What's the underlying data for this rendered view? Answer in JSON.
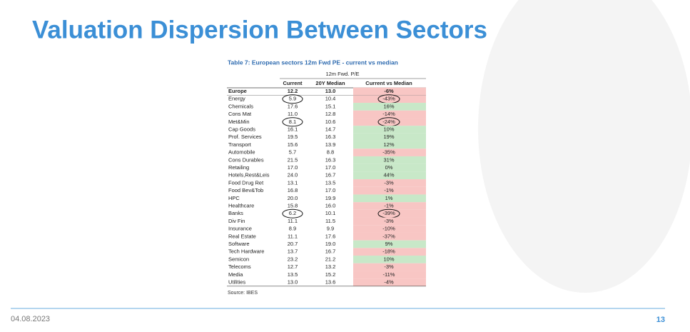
{
  "title": "Valuation Dispersion Between Sectors",
  "table": {
    "caption": "Table 7: European sectors 12m Fwd PE - current vs median",
    "group_header": "12m Fwd. P/E",
    "columns": [
      "Current",
      "20Y Median",
      "Current vs Median"
    ],
    "rows": [
      [
        "Europe",
        "12.2",
        "13.0",
        "-6%"
      ],
      [
        "Energy",
        "5.9",
        "10.4",
        "-43%"
      ],
      [
        "Chemicals",
        "17.6",
        "15.1",
        "16%"
      ],
      [
        "Cons Mat",
        "11.0",
        "12.8",
        "-14%"
      ],
      [
        "Met&Min",
        "8.1",
        "10.6",
        "-24%"
      ],
      [
        "Cap Goods",
        "16.1",
        "14.7",
        "10%"
      ],
      [
        "Prof. Services",
        "19.5",
        "16.3",
        "19%"
      ],
      [
        "Transport",
        "15.6",
        "13.9",
        "12%"
      ],
      [
        "Automobile",
        "5.7",
        "8.8",
        "-35%"
      ],
      [
        "Cons Durables",
        "21.5",
        "16.3",
        "31%"
      ],
      [
        "Retailing",
        "17.0",
        "17.0",
        "0%"
      ],
      [
        "Hotels,Rest&Leis",
        "24.0",
        "16.7",
        "44%"
      ],
      [
        "Food Drug Ret",
        "13.1",
        "13.5",
        "-3%"
      ],
      [
        "Food Bev&Tob",
        "16.8",
        "17.0",
        "-1%"
      ],
      [
        "HPC",
        "20.0",
        "19.9",
        "1%"
      ],
      [
        "Healthcare",
        "15.8",
        "16.0",
        "-1%"
      ],
      [
        "Banks",
        "6.2",
        "10.1",
        "-39%"
      ],
      [
        "Div Fin",
        "11.1",
        "11.5",
        "-3%"
      ],
      [
        "Insurance",
        "8.9",
        "9.9",
        "-10%"
      ],
      [
        "Real Estate",
        "11.1",
        "17.6",
        "-37%"
      ],
      [
        "Software",
        "20.7",
        "19.0",
        "9%"
      ],
      [
        "Tech Hardware",
        "13.7",
        "16.7",
        "-18%"
      ],
      [
        "Semicon",
        "23.2",
        "21.2",
        "10%"
      ],
      [
        "Telecoms",
        "12.7",
        "13.2",
        "-3%"
      ],
      [
        "Media",
        "13.5",
        "15.2",
        "-11%"
      ],
      [
        "Utilities",
        "13.0",
        "13.6",
        "-4%"
      ]
    ],
    "source": "Source: IBES"
  },
  "footer": {
    "date": "04.08.2023",
    "page": "13"
  }
}
